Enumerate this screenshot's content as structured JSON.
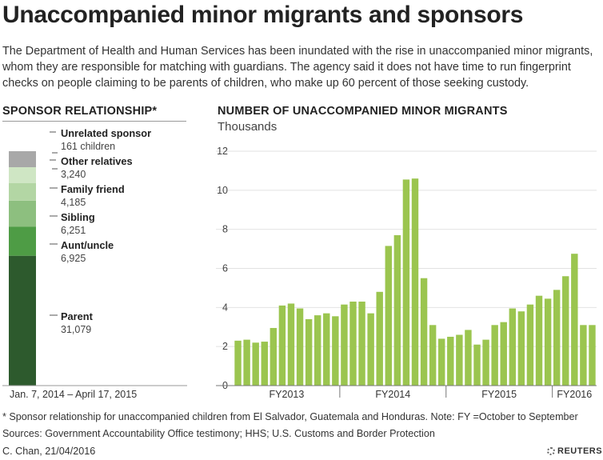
{
  "title": "Unaccompanied minor migrants and sponsors",
  "subtitle": "The Department of Health and Human Services has been inundated with the rise in unaccompanied minor migrants, whom they are responsible for matching with guardians. The agency said it does not have time to run fingerprint checks on people claiming to be parents of children, who make up 60 percent of those seeking custody.",
  "footnote": "* Sponsor relationship for unaccompanied children from El Salvador, Guatemala and Honduras. Note: FY =October to September",
  "sources": "Sources: Government Accountability Office testimony; HHS; U.S. Customs and Border Protection",
  "credit": "C. Chan,  21/04/2016",
  "brand": "REUTERS",
  "chart_data": [
    {
      "type": "bar",
      "title": "SPONSOR RELATIONSHIP*",
      "orientation": "stacked-vertical",
      "date_range": "Jan. 7, 2014 – April 17, 2015",
      "series": [
        {
          "name": "Parent",
          "value": 31079,
          "value_label": "31,079",
          "color": "#2d5a2d"
        },
        {
          "name": "Aunt/uncle",
          "value": 6925,
          "value_label": "6,925",
          "color": "#4e9c45"
        },
        {
          "name": "Sibling",
          "value": 6251,
          "value_label": "6,251",
          "color": "#8dbf7f"
        },
        {
          "name": "Family friend",
          "value": 4185,
          "value_label": "4,185",
          "color": "#b3d6a4"
        },
        {
          "name": "Other relatives",
          "value": 3240,
          "value_label": "3,240",
          "color": "#cfe6c4"
        },
        {
          "name": "Unrelated sponsor",
          "value": 161,
          "value_label": "161 children",
          "color": "#a8a8a8"
        }
      ]
    },
    {
      "type": "bar",
      "title": "NUMBER OF UNACCOMPANIED MINOR MIGRANTS",
      "ylabel": "Thousands",
      "ylim": [
        0,
        12
      ],
      "yticks": [
        0,
        2,
        4,
        6,
        8,
        10,
        12
      ],
      "grid": true,
      "color": "#9bc54f",
      "fiscal_years": [
        "FY2013",
        "FY2014",
        "FY2015",
        "FY2016"
      ],
      "values": [
        2.3,
        2.35,
        2.2,
        2.25,
        2.95,
        4.1,
        4.2,
        3.95,
        3.4,
        3.6,
        3.7,
        3.55,
        4.15,
        4.3,
        4.3,
        3.7,
        4.8,
        7.15,
        7.7,
        10.55,
        10.6,
        5.5,
        3.1,
        2.4,
        2.5,
        2.6,
        2.85,
        2.1,
        2.35,
        3.1,
        3.25,
        3.95,
        3.8,
        4.15,
        4.6,
        4.45,
        4.9,
        5.6,
        6.75,
        3.1,
        3.1
      ]
    }
  ]
}
